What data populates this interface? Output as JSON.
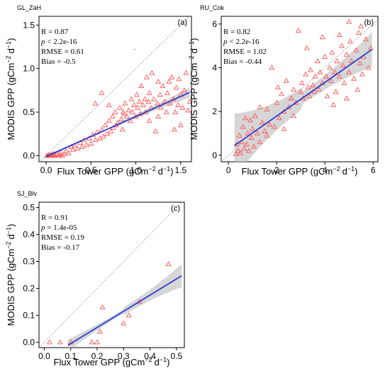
{
  "y_axis_label": "MODIS GPP (gCm",
  "x_axis_label": "Flux Tower GPP (gCm",
  "unit_exp": "−2",
  "unit_tail": "d",
  "unit_tail_exp": "−1",
  "unit_close": ")",
  "colors": {
    "points": "#ff5555",
    "regression": "#1a2fd6",
    "band": "#c8c8c8",
    "one_to_one": "#9a9a9a"
  },
  "chart_data": [
    {
      "type": "scatter",
      "site": "GL_ZaH",
      "panel_label": "(a)",
      "xlim": [
        -0.08,
        1.62
      ],
      "ylim": [
        -0.07,
        1.6
      ],
      "xticks": [
        0.0,
        0.5,
        1.0,
        1.5
      ],
      "yticks": [
        0.0,
        0.5,
        1.0,
        1.5
      ],
      "tick_labels_x": [
        "0.0",
        "0.5",
        "1.0",
        "1.5"
      ],
      "tick_labels_y": [
        "0.0",
        "0.5",
        "1.0",
        "1.5"
      ],
      "stats": {
        "r": "R = 0.87",
        "p_sym": "p",
        "p": " < 2.2e-16",
        "rmse": "RMSE = 0.61",
        "bias": "Bias = -0.5"
      },
      "regression": {
        "slope": 0.46,
        "intercept": -0.01,
        "x_range": [
          0.0,
          1.6
        ],
        "band": [
          0.01,
          0.035
        ]
      },
      "points": [
        [
          0.01,
          0.0
        ],
        [
          0.02,
          0.0
        ],
        [
          0.03,
          0.01
        ],
        [
          0.04,
          0.0
        ],
        [
          0.05,
          0.0
        ],
        [
          0.06,
          0.01
        ],
        [
          0.07,
          0.0
        ],
        [
          0.08,
          0.02
        ],
        [
          0.09,
          0.0
        ],
        [
          0.1,
          0.01
        ],
        [
          0.12,
          0.02
        ],
        [
          0.14,
          0.0
        ],
        [
          0.15,
          0.01
        ],
        [
          0.16,
          0.03
        ],
        [
          0.18,
          0.0
        ],
        [
          0.2,
          0.02
        ],
        [
          0.22,
          0.05
        ],
        [
          0.25,
          0.03
        ],
        [
          0.28,
          0.1
        ],
        [
          0.3,
          0.07
        ],
        [
          0.32,
          0.12
        ],
        [
          0.35,
          0.08
        ],
        [
          0.38,
          0.15
        ],
        [
          0.4,
          0.1
        ],
        [
          0.42,
          0.18
        ],
        [
          0.45,
          0.12
        ],
        [
          0.48,
          0.2
        ],
        [
          0.5,
          0.14
        ],
        [
          0.52,
          0.24
        ],
        [
          0.55,
          0.18
        ],
        [
          0.57,
          0.27
        ],
        [
          0.6,
          0.2
        ],
        [
          0.62,
          0.3
        ],
        [
          0.64,
          0.22
        ],
        [
          0.66,
          0.35
        ],
        [
          0.68,
          0.25
        ],
        [
          0.7,
          0.4
        ],
        [
          0.72,
          0.28
        ],
        [
          0.74,
          0.45
        ],
        [
          0.75,
          0.32
        ],
        [
          0.77,
          0.5
        ],
        [
          0.78,
          0.35
        ],
        [
          0.8,
          0.38
        ],
        [
          0.82,
          0.55
        ],
        [
          0.84,
          0.42
        ],
        [
          0.85,
          0.3
        ],
        [
          0.87,
          0.48
        ],
        [
          0.88,
          0.6
        ],
        [
          0.9,
          0.45
        ],
        [
          0.92,
          0.52
        ],
        [
          0.94,
          0.4
        ],
        [
          0.95,
          0.65
        ],
        [
          0.96,
          0.5
        ],
        [
          0.98,
          0.58
        ],
        [
          1.0,
          0.45
        ],
        [
          1.01,
          0.7
        ],
        [
          1.02,
          0.55
        ],
        [
          1.04,
          0.62
        ],
        [
          1.05,
          0.48
        ],
        [
          1.06,
          0.8
        ],
        [
          1.08,
          0.58
        ],
        [
          1.1,
          0.65
        ],
        [
          1.11,
          0.5
        ],
        [
          1.12,
          0.9
        ],
        [
          1.14,
          0.62
        ],
        [
          1.15,
          0.72
        ],
        [
          1.17,
          0.55
        ],
        [
          1.18,
          0.95
        ],
        [
          1.2,
          0.65
        ],
        [
          1.22,
          0.28
        ],
        [
          1.24,
          0.6
        ],
        [
          1.25,
          0.45
        ],
        [
          1.27,
          0.7
        ],
        [
          1.28,
          0.55
        ],
        [
          1.3,
          0.8
        ],
        [
          1.32,
          0.62
        ],
        [
          1.34,
          0.5
        ],
        [
          1.35,
          0.72
        ],
        [
          1.37,
          0.85
        ],
        [
          1.38,
          0.6
        ],
        [
          1.4,
          0.9
        ],
        [
          1.42,
          0.65
        ],
        [
          1.44,
          0.5
        ],
        [
          1.45,
          0.78
        ],
        [
          1.47,
          0.58
        ],
        [
          1.48,
          0.88
        ],
        [
          1.5,
          0.7
        ],
        [
          1.52,
          0.55
        ],
        [
          1.54,
          0.75
        ],
        [
          1.56,
          0.95
        ],
        [
          1.58,
          0.52
        ],
        [
          1.6,
          0.62
        ],
        [
          0.55,
          0.6
        ],
        [
          0.62,
          0.72
        ],
        [
          0.7,
          0.58
        ],
        [
          0.86,
          0.5
        ],
        [
          1.15,
          0.4
        ],
        [
          1.25,
          0.85
        ],
        [
          1.43,
          0.3
        ],
        [
          1.5,
          0.35
        ]
      ],
      "extra_points": [
        [
          0.99,
          1.22
        ]
      ]
    },
    {
      "type": "scatter",
      "site": "RU_Cok",
      "panel_label": "(b)",
      "xlim": [
        -0.3,
        6.2
      ],
      "ylim": [
        -0.3,
        6.35
      ],
      "xticks": [
        0,
        2,
        4,
        6
      ],
      "yticks": [
        0,
        2,
        4,
        6
      ],
      "tick_labels_x": [
        "0",
        "2",
        "4",
        "6"
      ],
      "tick_labels_y": [
        "0",
        "2",
        "4",
        "6"
      ],
      "stats": {
        "r": "R = 0.82",
        "p_sym": "p",
        "p": " < 2.2e-16",
        "rmse": "RMSE = 1.02",
        "bias": "Bias = -0.44"
      },
      "regression": {
        "slope": 0.77,
        "intercept": 0.25,
        "x_range": [
          0.25,
          5.95
        ],
        "band": [
          0.22,
          0.12
        ]
      },
      "points": [
        [
          0.3,
          0.05
        ],
        [
          0.35,
          0.5
        ],
        [
          0.4,
          0.2
        ],
        [
          0.45,
          0.9
        ],
        [
          0.5,
          0.1
        ],
        [
          0.55,
          0.6
        ],
        [
          0.6,
          1.3
        ],
        [
          0.65,
          0.3
        ],
        [
          0.7,
          1.7
        ],
        [
          0.75,
          0.5
        ],
        [
          0.8,
          1.0
        ],
        [
          0.85,
          0.2
        ],
        [
          0.9,
          1.6
        ],
        [
          0.95,
          0.8
        ],
        [
          1.0,
          1.2
        ],
        [
          1.05,
          0.4
        ],
        [
          1.1,
          1.8
        ],
        [
          1.2,
          1.0
        ],
        [
          1.3,
          0.6
        ],
        [
          1.4,
          1.5
        ],
        [
          1.5,
          1.1
        ],
        [
          1.6,
          2.1
        ],
        [
          1.7,
          1.4
        ],
        [
          1.8,
          4.0
        ],
        [
          1.9,
          1.3
        ],
        [
          2.0,
          2.4
        ],
        [
          2.1,
          1.7
        ],
        [
          2.2,
          2.8
        ],
        [
          2.3,
          2.0
        ],
        [
          2.4,
          3.4
        ],
        [
          2.5,
          2.2
        ],
        [
          2.6,
          2.6
        ],
        [
          2.7,
          3.0
        ],
        [
          2.8,
          2.4
        ],
        [
          2.9,
          5.7
        ],
        [
          3.0,
          2.9
        ],
        [
          3.05,
          3.3
        ],
        [
          3.1,
          2.6
        ],
        [
          3.2,
          3.7
        ],
        [
          3.3,
          3.1
        ],
        [
          3.35,
          2.7
        ],
        [
          3.4,
          3.9
        ],
        [
          3.5,
          3.2
        ],
        [
          3.55,
          2.9
        ],
        [
          3.6,
          3.6
        ],
        [
          3.7,
          4.3
        ],
        [
          3.75,
          3.0
        ],
        [
          3.8,
          3.8
        ],
        [
          3.9,
          3.3
        ],
        [
          4.0,
          4.5
        ],
        [
          4.05,
          3.6
        ],
        [
          4.1,
          2.7
        ],
        [
          4.2,
          4.0
        ],
        [
          4.25,
          3.4
        ],
        [
          4.3,
          4.7
        ],
        [
          4.4,
          3.8
        ],
        [
          4.45,
          2.9
        ],
        [
          4.5,
          4.3
        ],
        [
          4.6,
          3.6
        ],
        [
          4.7,
          5.0
        ],
        [
          4.75,
          4.1
        ],
        [
          4.8,
          3.3
        ],
        [
          4.9,
          4.6
        ],
        [
          5.0,
          3.8
        ],
        [
          5.05,
          5.2
        ],
        [
          5.1,
          4.3
        ],
        [
          5.2,
          3.5
        ],
        [
          5.3,
          4.8
        ],
        [
          5.4,
          5.6
        ],
        [
          5.45,
          4.2
        ],
        [
          5.5,
          5.9
        ],
        [
          5.55,
          3.7
        ],
        [
          5.6,
          4.5
        ],
        [
          5.7,
          5.3
        ],
        [
          5.8,
          4.0
        ],
        [
          5.9,
          4.9
        ],
        [
          5.0,
          6.1
        ],
        [
          4.6,
          5.5
        ],
        [
          3.9,
          5.4
        ],
        [
          1.3,
          2.2
        ],
        [
          1.6,
          0.9
        ],
        [
          2.3,
          1.2
        ],
        [
          2.7,
          1.8
        ],
        [
          3.25,
          4.9
        ],
        [
          4.35,
          2.3
        ],
        [
          4.9,
          2.6
        ],
        [
          5.35,
          3.0
        ],
        [
          2.05,
          3.1
        ]
      ],
      "extra_points": []
    },
    {
      "type": "scatter",
      "site": "SJ_Blv",
      "panel_label": "(c)",
      "xlim": [
        -0.02,
        0.53
      ],
      "ylim": [
        -0.02,
        0.52
      ],
      "xticks": [
        0.0,
        0.1,
        0.2,
        0.3,
        0.4,
        0.5
      ],
      "yticks": [
        0.0,
        0.1,
        0.2,
        0.3,
        0.4,
        0.5
      ],
      "tick_labels_x": [
        "0.0",
        "0.1",
        "0.2",
        "0.3",
        "0.4",
        "0.5"
      ],
      "tick_labels_y": [
        "0.0",
        "0.1",
        "0.2",
        "0.3",
        "0.4",
        "0.5"
      ],
      "stats": {
        "r": "R = 0.91",
        "p_sym": "p",
        "p": " = 1.4e-05",
        "rmse": "RMSE = 0.19",
        "bias": "Bias = -0.17"
      },
      "regression": {
        "slope": 0.6,
        "intercept": -0.065,
        "x_range": [
          0.09,
          0.52
        ],
        "band": [
          0.04,
          0.08
        ]
      },
      "points": [
        [
          0.02,
          0.0
        ],
        [
          0.06,
          0.0
        ],
        [
          0.1,
          0.0
        ],
        [
          0.18,
          0.0
        ],
        [
          0.2,
          0.0
        ],
        [
          0.21,
          0.04
        ],
        [
          0.22,
          0.13
        ],
        [
          0.3,
          0.07
        ],
        [
          0.32,
          0.1
        ],
        [
          0.36,
          0.15
        ],
        [
          0.47,
          0.29
        ]
      ],
      "extra_points": []
    }
  ]
}
